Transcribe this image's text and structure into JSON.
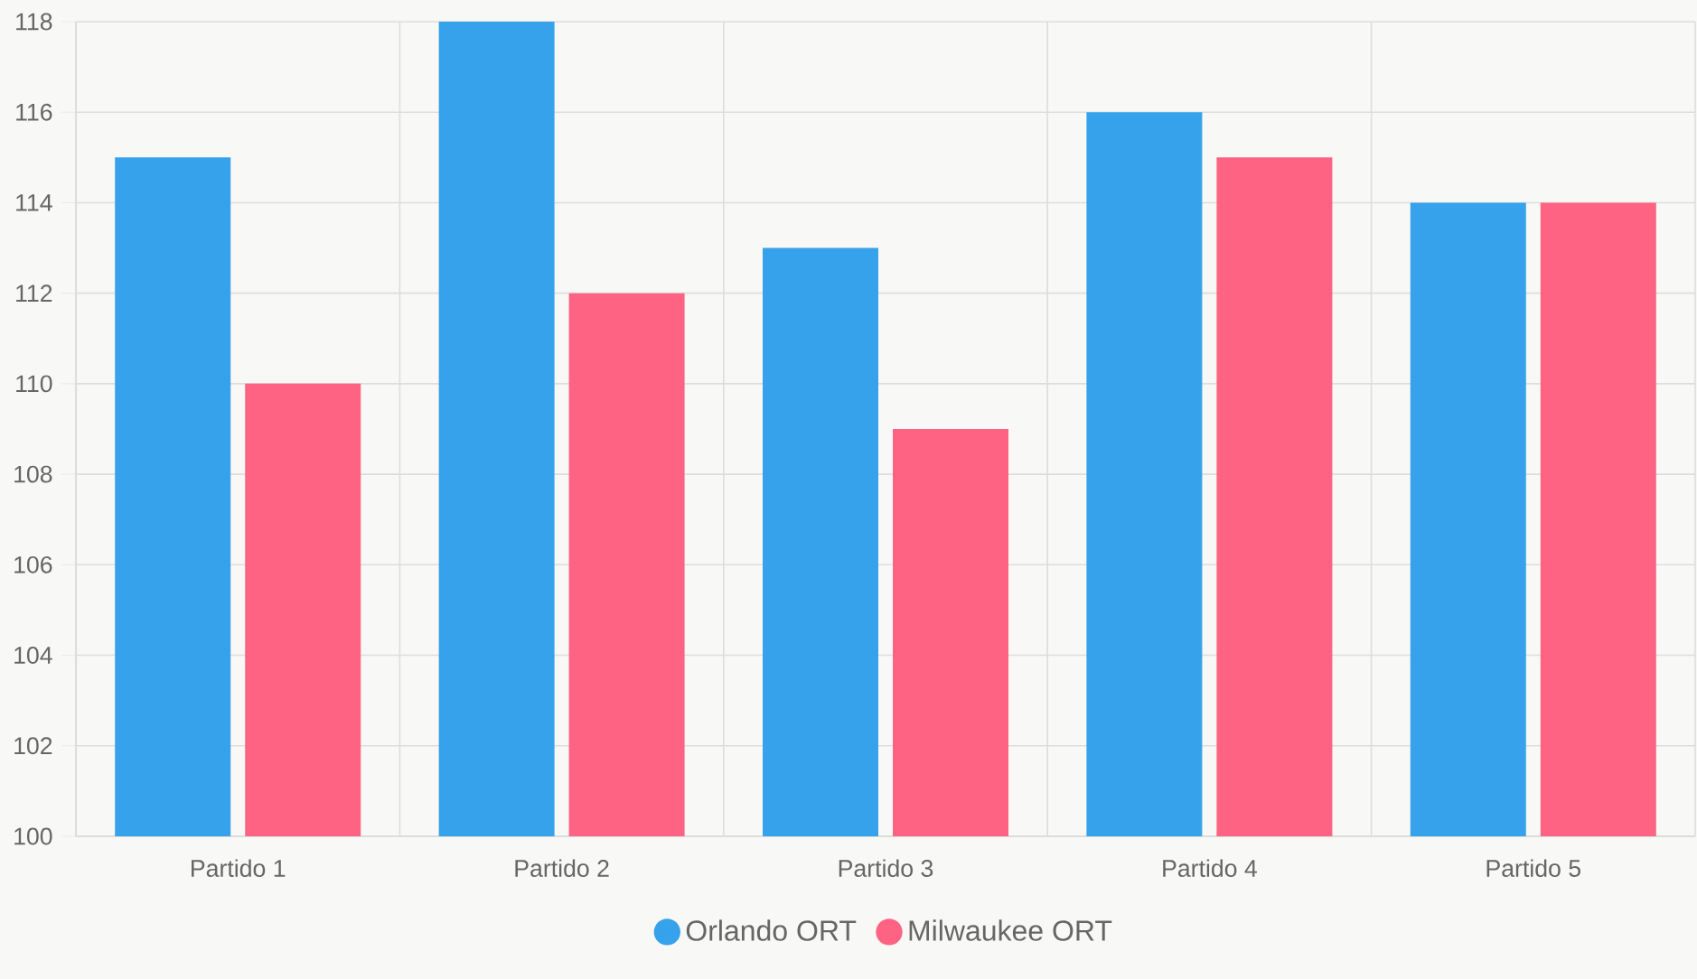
{
  "chart_data": {
    "type": "bar",
    "categories": [
      "Partido 1",
      "Partido 2",
      "Partido 3",
      "Partido 4",
      "Partido 5"
    ],
    "series": [
      {
        "name": "Orlando ORT",
        "color": "#36a2eb",
        "values": [
          115,
          118,
          113,
          116,
          114
        ]
      },
      {
        "name": "Milwaukee ORT",
        "color": "#ff6384",
        "values": [
          110,
          112,
          109,
          115,
          114
        ]
      }
    ],
    "ylim": [
      100,
      118
    ],
    "yticks": [
      100,
      102,
      104,
      106,
      108,
      110,
      112,
      114,
      116,
      118
    ],
    "grid": true,
    "legend": "bottom"
  }
}
